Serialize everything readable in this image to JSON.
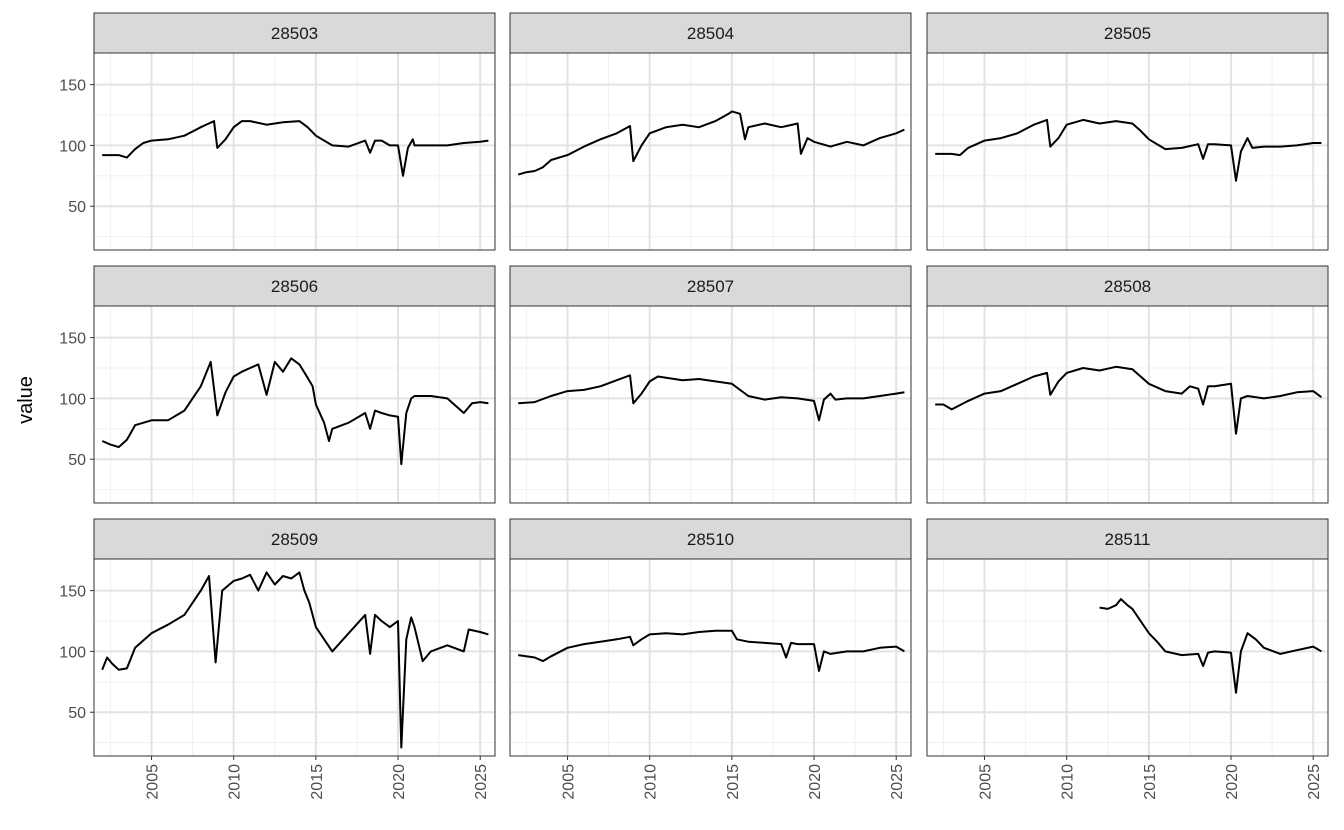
{
  "chart_data": {
    "type": "line",
    "layout": "facet-grid",
    "facet_columns": 3,
    "xlabel": "",
    "ylabel": "value",
    "xlim": [
      2001.5,
      2025.9
    ],
    "ylim": [
      14,
      176
    ],
    "x_ticks": [
      2005,
      2010,
      2015,
      2020,
      2025
    ],
    "y_ticks": [
      50,
      100,
      150
    ],
    "grid": true,
    "line_color": "#000000",
    "strip_color": "#d9d9d9",
    "panels": [
      {
        "label": "28503",
        "points": [
          [
            2002,
            92
          ],
          [
            2003,
            92
          ],
          [
            2003.5,
            90
          ],
          [
            2004,
            97
          ],
          [
            2004.5,
            102
          ],
          [
            2005,
            104
          ],
          [
            2006,
            105
          ],
          [
            2007,
            108
          ],
          [
            2008,
            115
          ],
          [
            2008.8,
            120
          ],
          [
            2009,
            98
          ],
          [
            2009.5,
            105
          ],
          [
            2010,
            115
          ],
          [
            2010.5,
            120
          ],
          [
            2011,
            120
          ],
          [
            2012,
            117
          ],
          [
            2013,
            119
          ],
          [
            2014,
            120
          ],
          [
            2014.5,
            115
          ],
          [
            2015,
            108
          ],
          [
            2016,
            100
          ],
          [
            2017,
            99
          ],
          [
            2018,
            104
          ],
          [
            2018.3,
            94
          ],
          [
            2018.6,
            104
          ],
          [
            2019,
            104
          ],
          [
            2019.5,
            100
          ],
          [
            2020,
            100
          ],
          [
            2020.3,
            75
          ],
          [
            2020.6,
            98
          ],
          [
            2020.9,
            105
          ],
          [
            2021,
            100
          ],
          [
            2022,
            100
          ],
          [
            2023,
            100
          ],
          [
            2024,
            102
          ],
          [
            2025,
            103
          ],
          [
            2025.5,
            104
          ]
        ]
      },
      {
        "label": "28504",
        "points": [
          [
            2002,
            76
          ],
          [
            2002.5,
            78
          ],
          [
            2003,
            79
          ],
          [
            2003.5,
            82
          ],
          [
            2004,
            88
          ],
          [
            2005,
            92
          ],
          [
            2006,
            99
          ],
          [
            2007,
            105
          ],
          [
            2008,
            110
          ],
          [
            2008.8,
            116
          ],
          [
            2009,
            87
          ],
          [
            2009.5,
            100
          ],
          [
            2010,
            110
          ],
          [
            2011,
            115
          ],
          [
            2012,
            117
          ],
          [
            2013,
            115
          ],
          [
            2014,
            120
          ],
          [
            2014.8,
            126
          ],
          [
            2015,
            128
          ],
          [
            2015.5,
            126
          ],
          [
            2015.8,
            105
          ],
          [
            2016,
            115
          ],
          [
            2017,
            118
          ],
          [
            2018,
            115
          ],
          [
            2019,
            118
          ],
          [
            2019.2,
            93
          ],
          [
            2019.6,
            106
          ],
          [
            2020,
            103
          ],
          [
            2021,
            99
          ],
          [
            2022,
            103
          ],
          [
            2023,
            100
          ],
          [
            2024,
            106
          ],
          [
            2025,
            110
          ],
          [
            2025.5,
            113
          ]
        ]
      },
      {
        "label": "28505",
        "points": [
          [
            2002,
            93
          ],
          [
            2003,
            93
          ],
          [
            2003.5,
            92
          ],
          [
            2004,
            98
          ],
          [
            2005,
            104
          ],
          [
            2006,
            106
          ],
          [
            2007,
            110
          ],
          [
            2008,
            117
          ],
          [
            2008.8,
            121
          ],
          [
            2009,
            99
          ],
          [
            2009.5,
            106
          ],
          [
            2010,
            117
          ],
          [
            2011,
            121
          ],
          [
            2012,
            118
          ],
          [
            2013,
            120
          ],
          [
            2014,
            118
          ],
          [
            2014.5,
            112
          ],
          [
            2015,
            105
          ],
          [
            2016,
            97
          ],
          [
            2017,
            98
          ],
          [
            2018,
            101
          ],
          [
            2018.3,
            89
          ],
          [
            2018.6,
            101
          ],
          [
            2019,
            101
          ],
          [
            2020,
            100
          ],
          [
            2020.3,
            71
          ],
          [
            2020.6,
            95
          ],
          [
            2021,
            106
          ],
          [
            2021.3,
            98
          ],
          [
            2022,
            99
          ],
          [
            2023,
            99
          ],
          [
            2024,
            100
          ],
          [
            2025,
            102
          ],
          [
            2025.5,
            102
          ]
        ]
      },
      {
        "label": "28506",
        "points": [
          [
            2002,
            65
          ],
          [
            2002.5,
            62
          ],
          [
            2003,
            60
          ],
          [
            2003.5,
            66
          ],
          [
            2004,
            78
          ],
          [
            2005,
            82
          ],
          [
            2006,
            82
          ],
          [
            2007,
            90
          ],
          [
            2008,
            110
          ],
          [
            2008.6,
            130
          ],
          [
            2009,
            86
          ],
          [
            2009.5,
            105
          ],
          [
            2010,
            118
          ],
          [
            2010.5,
            122
          ],
          [
            2011,
            125
          ],
          [
            2011.5,
            128
          ],
          [
            2012,
            103
          ],
          [
            2012.5,
            130
          ],
          [
            2013,
            122
          ],
          [
            2013.5,
            133
          ],
          [
            2014,
            128
          ],
          [
            2014.5,
            117
          ],
          [
            2014.8,
            110
          ],
          [
            2015,
            95
          ],
          [
            2015.5,
            80
          ],
          [
            2015.8,
            65
          ],
          [
            2016,
            75
          ],
          [
            2017,
            80
          ],
          [
            2018,
            88
          ],
          [
            2018.3,
            75
          ],
          [
            2018.6,
            90
          ],
          [
            2019,
            88
          ],
          [
            2019.5,
            86
          ],
          [
            2020,
            85
          ],
          [
            2020.2,
            46
          ],
          [
            2020.5,
            88
          ],
          [
            2020.8,
            100
          ],
          [
            2021,
            102
          ],
          [
            2022,
            102
          ],
          [
            2023,
            100
          ],
          [
            2024,
            88
          ],
          [
            2024.5,
            96
          ],
          [
            2025,
            97
          ],
          [
            2025.5,
            96
          ]
        ]
      },
      {
        "label": "28507",
        "points": [
          [
            2002,
            96
          ],
          [
            2003,
            97
          ],
          [
            2004,
            102
          ],
          [
            2005,
            106
          ],
          [
            2006,
            107
          ],
          [
            2007,
            110
          ],
          [
            2008,
            115
          ],
          [
            2008.8,
            119
          ],
          [
            2009,
            96
          ],
          [
            2009.5,
            104
          ],
          [
            2010,
            114
          ],
          [
            2010.5,
            118
          ],
          [
            2011,
            117
          ],
          [
            2012,
            115
          ],
          [
            2013,
            116
          ],
          [
            2014,
            114
          ],
          [
            2015,
            112
          ],
          [
            2016,
            102
          ],
          [
            2017,
            99
          ],
          [
            2018,
            101
          ],
          [
            2019,
            100
          ],
          [
            2020,
            98
          ],
          [
            2020.3,
            82
          ],
          [
            2020.6,
            99
          ],
          [
            2021,
            104
          ],
          [
            2021.3,
            99
          ],
          [
            2022,
            100
          ],
          [
            2023,
            100
          ],
          [
            2024,
            102
          ],
          [
            2025,
            104
          ],
          [
            2025.5,
            105
          ]
        ]
      },
      {
        "label": "28508",
        "points": [
          [
            2002,
            95
          ],
          [
            2002.5,
            95
          ],
          [
            2003,
            91
          ],
          [
            2004,
            98
          ],
          [
            2005,
            104
          ],
          [
            2006,
            106
          ],
          [
            2007,
            112
          ],
          [
            2008,
            118
          ],
          [
            2008.8,
            121
          ],
          [
            2009,
            103
          ],
          [
            2009.5,
            114
          ],
          [
            2010,
            121
          ],
          [
            2011,
            125
          ],
          [
            2012,
            123
          ],
          [
            2013,
            126
          ],
          [
            2014,
            124
          ],
          [
            2014.5,
            118
          ],
          [
            2015,
            112
          ],
          [
            2016,
            106
          ],
          [
            2017,
            104
          ],
          [
            2017.5,
            110
          ],
          [
            2018,
            108
          ],
          [
            2018.3,
            95
          ],
          [
            2018.6,
            110
          ],
          [
            2019,
            110
          ],
          [
            2020,
            112
          ],
          [
            2020.3,
            71
          ],
          [
            2020.6,
            100
          ],
          [
            2021,
            102
          ],
          [
            2022,
            100
          ],
          [
            2023,
            102
          ],
          [
            2024,
            105
          ],
          [
            2025,
            106
          ],
          [
            2025.5,
            101
          ]
        ]
      },
      {
        "label": "28509",
        "points": [
          [
            2002,
            85
          ],
          [
            2002.3,
            95
          ],
          [
            2002.6,
            90
          ],
          [
            2003,
            85
          ],
          [
            2003.5,
            86
          ],
          [
            2004,
            103
          ],
          [
            2005,
            115
          ],
          [
            2006,
            122
          ],
          [
            2007,
            130
          ],
          [
            2008,
            150
          ],
          [
            2008.5,
            162
          ],
          [
            2008.9,
            91
          ],
          [
            2009.3,
            150
          ],
          [
            2010,
            158
          ],
          [
            2010.5,
            160
          ],
          [
            2011,
            163
          ],
          [
            2011.5,
            150
          ],
          [
            2012,
            165
          ],
          [
            2012.5,
            155
          ],
          [
            2013,
            162
          ],
          [
            2013.5,
            160
          ],
          [
            2014,
            165
          ],
          [
            2014.3,
            150
          ],
          [
            2014.6,
            140
          ],
          [
            2015,
            120
          ],
          [
            2015.5,
            110
          ],
          [
            2016,
            100
          ],
          [
            2017,
            115
          ],
          [
            2018,
            130
          ],
          [
            2018.3,
            98
          ],
          [
            2018.6,
            130
          ],
          [
            2019,
            125
          ],
          [
            2019.5,
            120
          ],
          [
            2020,
            125
          ],
          [
            2020.2,
            21
          ],
          [
            2020.5,
            110
          ],
          [
            2020.8,
            128
          ],
          [
            2021,
            120
          ],
          [
            2021.5,
            92
          ],
          [
            2022,
            100
          ],
          [
            2023,
            105
          ],
          [
            2024,
            100
          ],
          [
            2024.3,
            118
          ],
          [
            2025,
            116
          ],
          [
            2025.5,
            114
          ]
        ]
      },
      {
        "label": "28510",
        "points": [
          [
            2002,
            97
          ],
          [
            2003,
            95
          ],
          [
            2003.5,
            92
          ],
          [
            2004,
            96
          ],
          [
            2005,
            103
          ],
          [
            2006,
            106
          ],
          [
            2007,
            108
          ],
          [
            2008,
            110
          ],
          [
            2008.8,
            112
          ],
          [
            2009,
            105
          ],
          [
            2009.5,
            110
          ],
          [
            2010,
            114
          ],
          [
            2011,
            115
          ],
          [
            2012,
            114
          ],
          [
            2013,
            116
          ],
          [
            2014,
            117
          ],
          [
            2015,
            117
          ],
          [
            2015.3,
            110
          ],
          [
            2016,
            108
          ],
          [
            2017,
            107
          ],
          [
            2018,
            106
          ],
          [
            2018.3,
            95
          ],
          [
            2018.6,
            107
          ],
          [
            2019,
            106
          ],
          [
            2020,
            106
          ],
          [
            2020.3,
            84
          ],
          [
            2020.6,
            100
          ],
          [
            2021,
            98
          ],
          [
            2022,
            100
          ],
          [
            2023,
            100
          ],
          [
            2024,
            103
          ],
          [
            2025,
            104
          ],
          [
            2025.5,
            100
          ]
        ]
      },
      {
        "label": "28511",
        "points": [
          [
            2012,
            136
          ],
          [
            2012.5,
            135
          ],
          [
            2013,
            138
          ],
          [
            2013.3,
            143
          ],
          [
            2013.7,
            138
          ],
          [
            2014,
            135
          ],
          [
            2014.5,
            125
          ],
          [
            2015,
            115
          ],
          [
            2015.5,
            108
          ],
          [
            2016,
            100
          ],
          [
            2017,
            97
          ],
          [
            2018,
            98
          ],
          [
            2018.3,
            88
          ],
          [
            2018.6,
            99
          ],
          [
            2019,
            100
          ],
          [
            2020,
            99
          ],
          [
            2020.3,
            66
          ],
          [
            2020.6,
            100
          ],
          [
            2021,
            115
          ],
          [
            2021.5,
            110
          ],
          [
            2022,
            103
          ],
          [
            2023,
            98
          ],
          [
            2024,
            101
          ],
          [
            2025,
            104
          ],
          [
            2025.5,
            100
          ]
        ]
      }
    ]
  }
}
